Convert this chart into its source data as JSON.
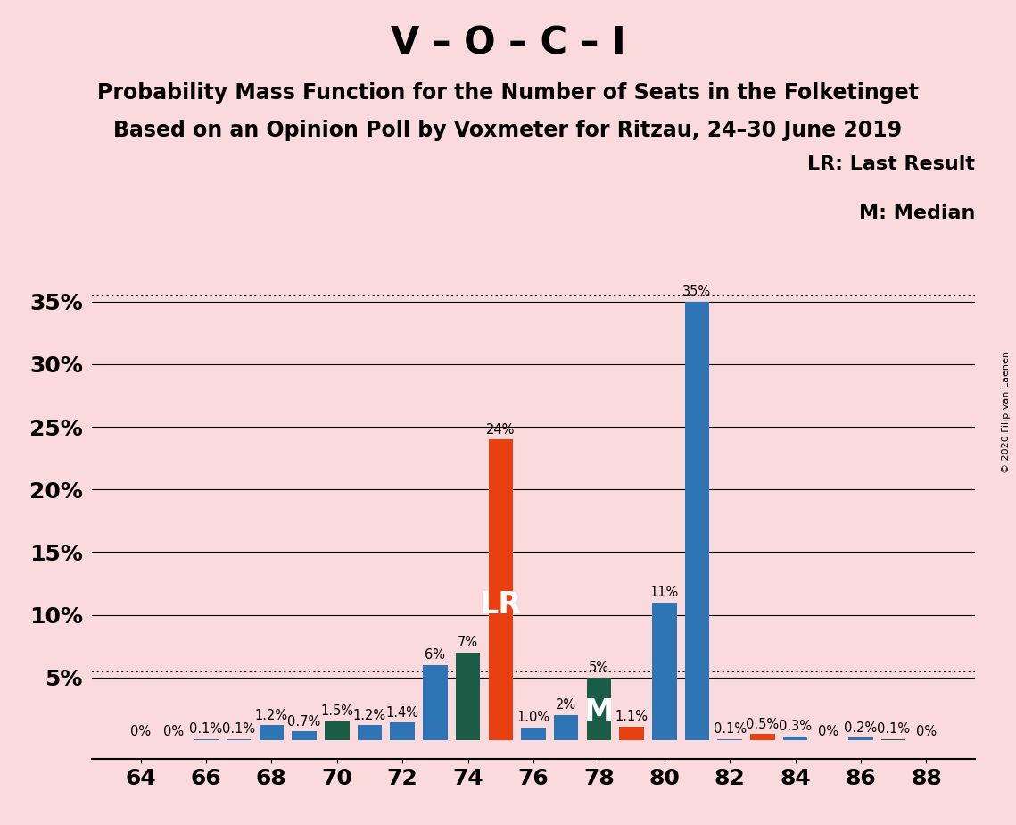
{
  "title": "V – O – C – I",
  "subtitle1": "Probability Mass Function for the Number of Seats in the Folketinget",
  "subtitle2": "Based on an Opinion Poll by Voxmeter for Ritzau, 24–30 June 2019",
  "copyright": "© 2020 Filip van Laenen",
  "background_color": "#fadadd",
  "seats": [
    64,
    65,
    66,
    67,
    68,
    69,
    70,
    71,
    72,
    73,
    74,
    75,
    76,
    77,
    78,
    79,
    80,
    81,
    82,
    83,
    84,
    85,
    86,
    87,
    88
  ],
  "values": [
    0.0,
    0.0,
    0.1,
    0.1,
    1.2,
    0.7,
    1.5,
    1.2,
    1.4,
    6.0,
    7.0,
    24.0,
    1.0,
    2.0,
    5.0,
    1.1,
    11.0,
    35.0,
    0.1,
    0.5,
    0.3,
    0.0,
    0.2,
    0.1,
    0.0
  ],
  "labels": [
    "0%",
    "0%",
    "0.1%",
    "0.1%",
    "1.2%",
    "0.7%",
    "1.5%",
    "1.2%",
    "1.4%",
    "6%",
    "7%",
    "24%",
    "1.0%",
    "2%",
    "5%",
    "1.1%",
    "11%",
    "35%",
    "0.1%",
    "0.5%",
    "0.3%",
    "0%",
    "0.2%",
    "0.1%",
    "0%"
  ],
  "colors": [
    "#2e75b6",
    "#2e75b6",
    "#2e75b6",
    "#2e75b6",
    "#2e75b6",
    "#2e75b6",
    "#1a5c45",
    "#2e75b6",
    "#2e75b6",
    "#2e75b6",
    "#1a5c45",
    "#e84010",
    "#2e75b6",
    "#2e75b6",
    "#1a5c45",
    "#e84010",
    "#2e75b6",
    "#2e75b6",
    "#2e75b6",
    "#e84010",
    "#2e75b6",
    "#2e75b6",
    "#2e75b6",
    "#1a5c45",
    "#2e75b6"
  ],
  "lr_seat": 75,
  "median_seat": 78,
  "lr_label": "LR: Last Result",
  "median_label": "M: Median",
  "ylim_min": -1.5,
  "ylim_max": 38,
  "yticks": [
    5,
    10,
    15,
    20,
    25,
    30,
    35
  ],
  "xticks": [
    64,
    66,
    68,
    70,
    72,
    74,
    76,
    78,
    80,
    82,
    84,
    86,
    88
  ],
  "bar_width": 0.75,
  "lr_line_y": 35.5,
  "median_line_y": 5.5,
  "title_fontsize": 30,
  "subtitle_fontsize": 17,
  "axis_fontsize": 18,
  "label_fontsize": 10.5,
  "legend_fontsize": 16
}
